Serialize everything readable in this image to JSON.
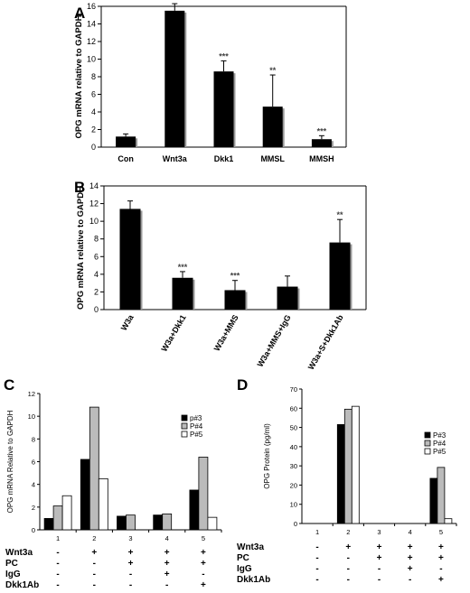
{
  "chart_data": [
    {
      "panel": "A",
      "type": "bar",
      "ylabel": "OPG mRNA relative to GAPDH",
      "ylim": [
        0,
        16
      ],
      "yticks": [
        0,
        2,
        4,
        6,
        8,
        10,
        12,
        14,
        16
      ],
      "categories": [
        "Con",
        "Wnt3a",
        "Dkk1",
        "MMSL",
        "MMSH"
      ],
      "values": [
        1.2,
        15.5,
        8.6,
        4.6,
        0.9
      ],
      "errors": [
        0.3,
        0.8,
        1.2,
        3.6,
        0.4
      ],
      "significance": [
        "",
        "***",
        "***",
        "**",
        "***"
      ],
      "grid": false
    },
    {
      "panel": "B",
      "type": "bar",
      "ylabel": "OPG mRNA relative to GAPDH",
      "ylim": [
        0,
        14
      ],
      "yticks": [
        0,
        2,
        4,
        6,
        8,
        10,
        12,
        14
      ],
      "categories": [
        "W3a",
        "W3a+Dkk1",
        "W3a+MMS",
        "W3a+MMS+IgG",
        "W3a+S+Dkk1Ab"
      ],
      "values": [
        11.4,
        3.6,
        2.2,
        2.6,
        7.6
      ],
      "errors": [
        0.9,
        0.7,
        1.1,
        1.2,
        2.6
      ],
      "significance": [
        "",
        "***",
        "***",
        "",
        "**"
      ],
      "grid": false
    },
    {
      "panel": "C",
      "type": "bar",
      "ylabel": "OPG mRNA Relative to GAPDH",
      "ylim": [
        0,
        12
      ],
      "yticks": [
        0,
        2,
        4,
        6,
        8,
        10,
        12
      ],
      "categories": [
        "1",
        "2",
        "3",
        "4",
        "5"
      ],
      "series": [
        {
          "name": "p#3",
          "values": [
            1.0,
            6.2,
            1.2,
            1.3,
            3.5
          ],
          "color": "#000000"
        },
        {
          "name": "P#4",
          "values": [
            2.1,
            10.8,
            1.3,
            1.4,
            6.4
          ],
          "color": "#bbbbbb"
        },
        {
          "name": "P#5",
          "values": [
            3.0,
            4.5,
            0,
            0,
            1.1
          ],
          "color": "#ffffff"
        }
      ],
      "legend": "top-right",
      "grid": false
    },
    {
      "panel": "D",
      "type": "bar",
      "ylabel": "OPG Protein (pg/ml)",
      "ylim": [
        0,
        70
      ],
      "yticks": [
        0,
        10,
        20,
        30,
        40,
        50,
        60,
        70
      ],
      "categories": [
        "1",
        "2",
        "3",
        "4",
        "5"
      ],
      "series": [
        {
          "name": "P#3",
          "values": [
            0,
            51.5,
            0,
            0,
            23.5
          ],
          "color": "#000000"
        },
        {
          "name": "P#4",
          "values": [
            0,
            59.5,
            0,
            0,
            29.2
          ],
          "color": "#bbbbbb"
        },
        {
          "name": "P#5",
          "values": [
            0,
            61.0,
            0,
            0,
            2.5
          ],
          "color": "#ffffff"
        }
      ],
      "legend": "top-right",
      "grid": false
    }
  ],
  "conditions": {
    "labels": [
      "Wnt3a",
      "PC",
      "IgG",
      "Dkk1Ab"
    ],
    "marks": [
      [
        "-",
        "+",
        "+",
        "+",
        "+"
      ],
      [
        "-",
        "-",
        "+",
        "+",
        "+"
      ],
      [
        "-",
        "-",
        "-",
        "+",
        "-"
      ],
      [
        "-",
        "-",
        "-",
        "-",
        "+"
      ]
    ]
  }
}
